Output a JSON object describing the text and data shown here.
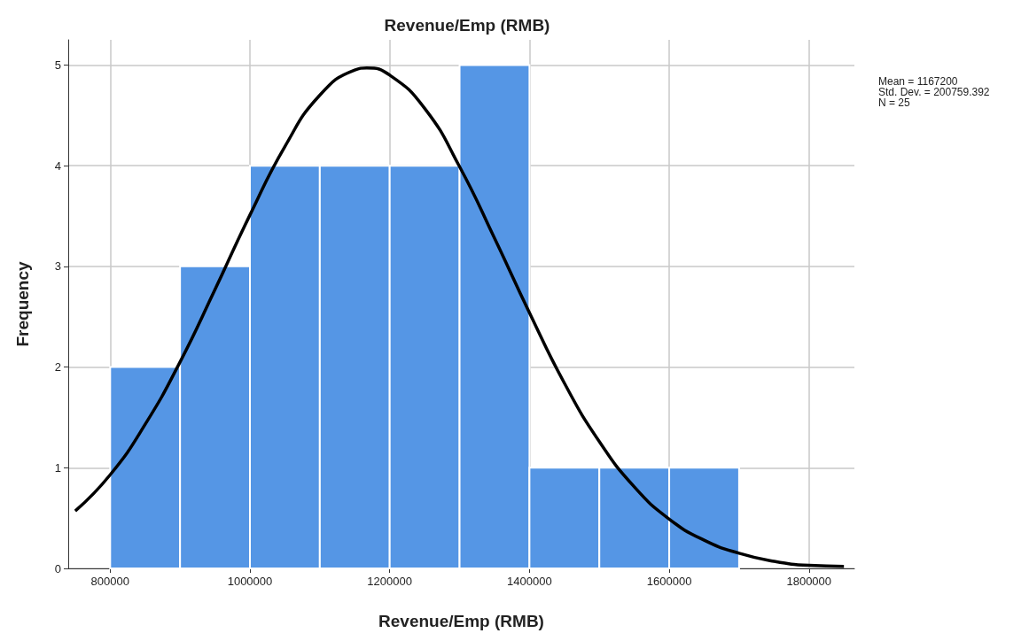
{
  "chart_data": {
    "type": "histogram",
    "title": "Revenue/Emp (RMB)",
    "xlabel": "Revenue/Emp (RMB)",
    "ylabel": "Frequency",
    "bins": [
      800000,
      900000,
      1000000,
      1100000,
      1200000,
      1300000,
      1400000,
      1500000,
      1600000,
      1700000
    ],
    "values": [
      2,
      3,
      4,
      4,
      4,
      5,
      1,
      1,
      1
    ],
    "color": "#5596e5",
    "series": [
      {
        "type": "line",
        "color": "#000000",
        "x": [
          750000,
          800000,
          850000,
          900000,
          950000,
          1000000,
          1050000,
          1100000,
          1150000,
          1167200,
          1200000,
          1250000,
          1300000,
          1350000,
          1400000,
          1450000,
          1500000,
          1550000,
          1600000,
          1650000,
          1700000,
          1750000,
          1800000,
          1850000
        ],
        "values": [
          0.57,
          0.93,
          1.43,
          2.05,
          2.77,
          3.51,
          4.19,
          4.7,
          4.95,
          4.97,
          4.9,
          4.57,
          3.99,
          3.28,
          2.54,
          1.84,
          1.26,
          0.81,
          0.49,
          0.28,
          0.15,
          0.07,
          0.03,
          0.02
        ]
      }
    ],
    "annotations": [
      "Mean = 1167200",
      "Std. Dev. = 200759.392",
      "N = 25"
    ],
    "xlim": [
      740000,
      1865000
    ],
    "xticks": [
      800000,
      1000000,
      1200000,
      1400000,
      1600000,
      1800000
    ],
    "ylim": [
      0,
      5.25
    ],
    "yticks": [
      0,
      1,
      2,
      3,
      4,
      5
    ],
    "grid": true,
    "marker": "none",
    "line_style": "solid"
  }
}
